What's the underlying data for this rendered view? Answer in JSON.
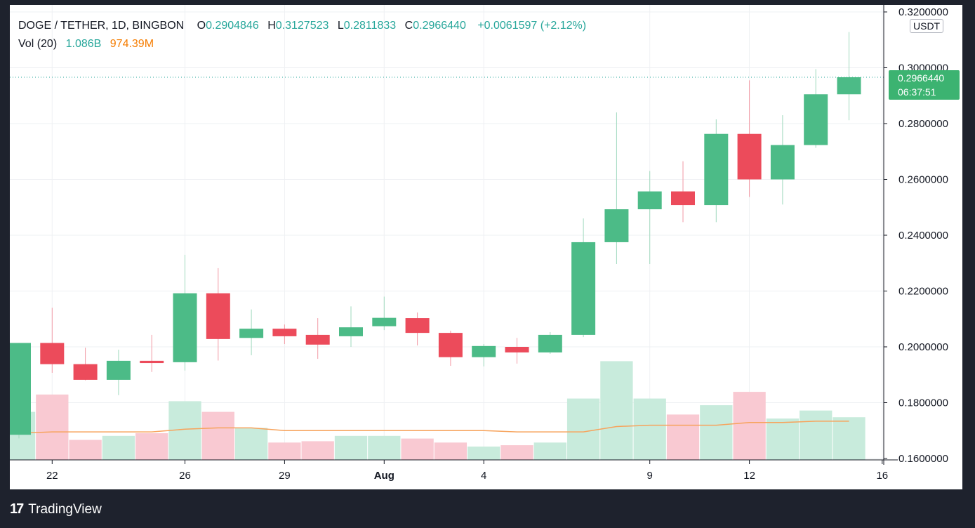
{
  "header": {
    "symbol": "DOGE / TETHER, 1D, BINGBON",
    "o_label": "O",
    "o_value": "0.2904846",
    "h_label": "H",
    "h_value": "0.3127523",
    "l_label": "L",
    "l_value": "0.2811833",
    "c_label": "C",
    "c_value": "0.2966440",
    "change": "+0.0061597 (+2.12%)",
    "vol_label": "Vol (20)",
    "vol_value": "1.086B",
    "vol_ma_value": "974.39M"
  },
  "price_scale": {
    "unit": "USDT",
    "last_price": "0.2966440",
    "countdown": "06:37:51"
  },
  "colors": {
    "up": "#26a69a",
    "down": "#ef5350",
    "ma": "#f57c00",
    "tag": "#3cb371"
  },
  "branding": {
    "logo_text": "TradingView",
    "logo_mark": "17"
  },
  "chart_data": {
    "type": "candlestick",
    "x": [
      "Jul 21",
      "Jul 22",
      "Jul 23",
      "Jul 24",
      "Jul 25",
      "Jul 26",
      "Jul 27",
      "Jul 28",
      "Jul 29",
      "Jul 30",
      "Jul 31",
      "Aug 1",
      "Aug 2",
      "Aug 3",
      "Aug 4",
      "Aug 5",
      "Aug 6",
      "Aug 7",
      "Aug 8",
      "Aug 9",
      "Aug 10",
      "Aug 11",
      "Aug 12",
      "Aug 13",
      "Aug 14",
      "Aug 15"
    ],
    "open": [
      0.1685,
      0.2014,
      0.1938,
      0.1882,
      0.195,
      0.1945,
      0.2192,
      0.2032,
      0.2065,
      0.2043,
      0.2038,
      0.2074,
      0.2103,
      0.205,
      0.1963,
      0.2,
      0.198,
      0.2043,
      0.2375,
      0.2493,
      0.2557,
      0.2508,
      0.2763,
      0.26,
      0.2723,
      0.2905
    ],
    "high": [
      0.2014,
      0.214,
      0.1997,
      0.199,
      0.2043,
      0.233,
      0.2282,
      0.2134,
      0.208,
      0.2103,
      0.2145,
      0.218,
      0.2123,
      0.2058,
      0.201,
      0.2032,
      0.2053,
      0.246,
      0.284,
      0.263,
      0.2665,
      0.2815,
      0.2955,
      0.283,
      0.2995,
      0.3128
    ],
    "low": [
      0.1672,
      0.1907,
      0.188,
      0.1827,
      0.191,
      0.1915,
      0.1951,
      0.197,
      0.201,
      0.1957,
      0.2,
      0.206,
      0.2005,
      0.1932,
      0.193,
      0.194,
      0.1975,
      0.2035,
      0.2297,
      0.2297,
      0.2447,
      0.2447,
      0.2537,
      0.251,
      0.2713,
      0.2812
    ],
    "close": [
      0.2014,
      0.1938,
      0.1882,
      0.195,
      0.1942,
      0.2192,
      0.2028,
      0.2065,
      0.2038,
      0.2008,
      0.207,
      0.2104,
      0.205,
      0.1963,
      0.2003,
      0.198,
      0.2043,
      0.2375,
      0.2493,
      0.2557,
      0.2508,
      0.2763,
      0.26,
      0.2723,
      0.2905,
      0.2966
    ],
    "volume_up": [
      true,
      false,
      false,
      true,
      false,
      true,
      false,
      true,
      false,
      false,
      true,
      true,
      false,
      false,
      true,
      false,
      true,
      true,
      true,
      true,
      false,
      true,
      false,
      true,
      true,
      true
    ],
    "volume_rel": [
      0.36,
      0.49,
      0.15,
      0.18,
      0.2,
      0.44,
      0.36,
      0.24,
      0.13,
      0.14,
      0.18,
      0.18,
      0.16,
      0.13,
      0.1,
      0.11,
      0.13,
      0.46,
      0.74,
      0.46,
      0.34,
      0.41,
      0.51,
      0.31,
      0.37,
      0.32
    ],
    "volume_ma_rel": [
      0.2,
      0.21,
      0.21,
      0.21,
      0.21,
      0.23,
      0.24,
      0.24,
      0.22,
      0.22,
      0.22,
      0.22,
      0.22,
      0.22,
      0.22,
      0.21,
      0.21,
      0.21,
      0.25,
      0.26,
      0.26,
      0.26,
      0.28,
      0.28,
      0.29,
      0.29
    ],
    "y_ticks": [
      "0.3200000",
      "0.3000000",
      "0.2800000",
      "0.2600000",
      "0.2400000",
      "0.2200000",
      "0.2000000",
      "0.1800000",
      "0.1600000"
    ],
    "ylim": [
      0.16,
      0.32
    ],
    "x_tick_labels": [
      {
        "label": "22",
        "index": 1
      },
      {
        "label": "26",
        "index": 5
      },
      {
        "label": "29",
        "index": 8
      },
      {
        "label": "Aug",
        "index": 11
      },
      {
        "label": "4",
        "index": 14
      },
      {
        "label": "9",
        "index": 19
      },
      {
        "label": "12",
        "index": 22
      },
      {
        "label": "16",
        "index": 26
      }
    ],
    "grid": true
  }
}
